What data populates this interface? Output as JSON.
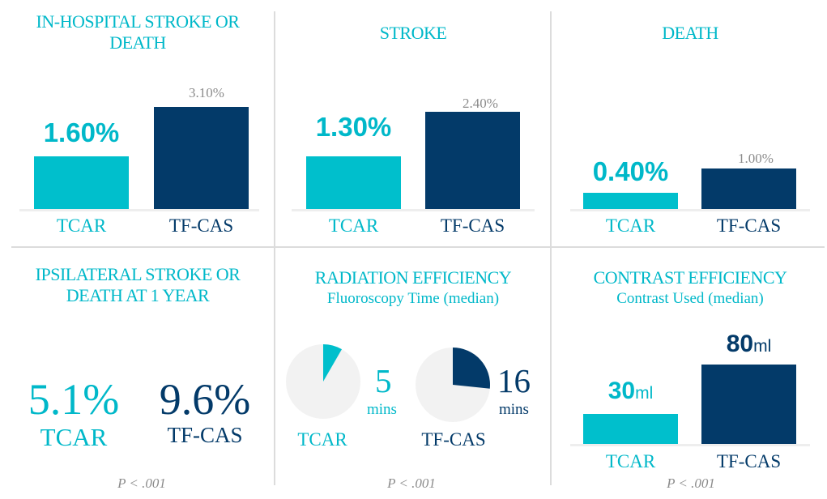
{
  "colors": {
    "tcar": "#00bfcc",
    "tfcas": "#033a69",
    "pie_bg": "#f2f2f2"
  },
  "chart_data": [
    {
      "type": "bar",
      "title": "IN-HOSPITAL STROKE OR DEATH",
      "categories": [
        "TCAR",
        "TF-CAS"
      ],
      "values": [
        1.6,
        3.1
      ],
      "labels": [
        "1.60%",
        "3.10%"
      ],
      "ylim": [
        0,
        3.7
      ]
    },
    {
      "type": "bar",
      "title": "STROKE",
      "categories": [
        "TCAR",
        "TF-CAS"
      ],
      "values": [
        1.3,
        2.4
      ],
      "labels": [
        "1.30%",
        "2.40%"
      ],
      "ylim": [
        0,
        3.0
      ]
    },
    {
      "type": "bar",
      "title": "DEATH",
      "categories": [
        "TCAR",
        "TF-CAS"
      ],
      "values": [
        0.4,
        1.0
      ],
      "labels": [
        "0.40%",
        "1.00%"
      ],
      "ylim": [
        0,
        3.0
      ]
    },
    {
      "type": "table",
      "title": "IPSILATERAL STROKE OR DEATH AT 1 YEAR",
      "categories": [
        "TCAR",
        "TF-CAS"
      ],
      "values": [
        5.1,
        9.6
      ],
      "labels": [
        "5.1%",
        "9.6%"
      ],
      "pvalue": "P < .001"
    },
    {
      "type": "pie",
      "title": "RADIATION EFFICIENCY",
      "subtitle": "Fluoroscopy Time (median)",
      "categories": [
        "TCAR",
        "TF-CAS"
      ],
      "values": [
        5,
        16
      ],
      "labels": [
        "5",
        "16"
      ],
      "unit": "mins",
      "pvalue": "P < .001"
    },
    {
      "type": "bar",
      "title": "CONTRAST EFFICIENCY",
      "subtitle": "Contrast Used (median)",
      "categories": [
        "TCAR",
        "TF-CAS"
      ],
      "values": [
        30,
        80
      ],
      "labels": [
        "30",
        "80"
      ],
      "unit": "ml",
      "pvalue": "P < .001",
      "ylim": [
        0,
        100
      ]
    }
  ]
}
